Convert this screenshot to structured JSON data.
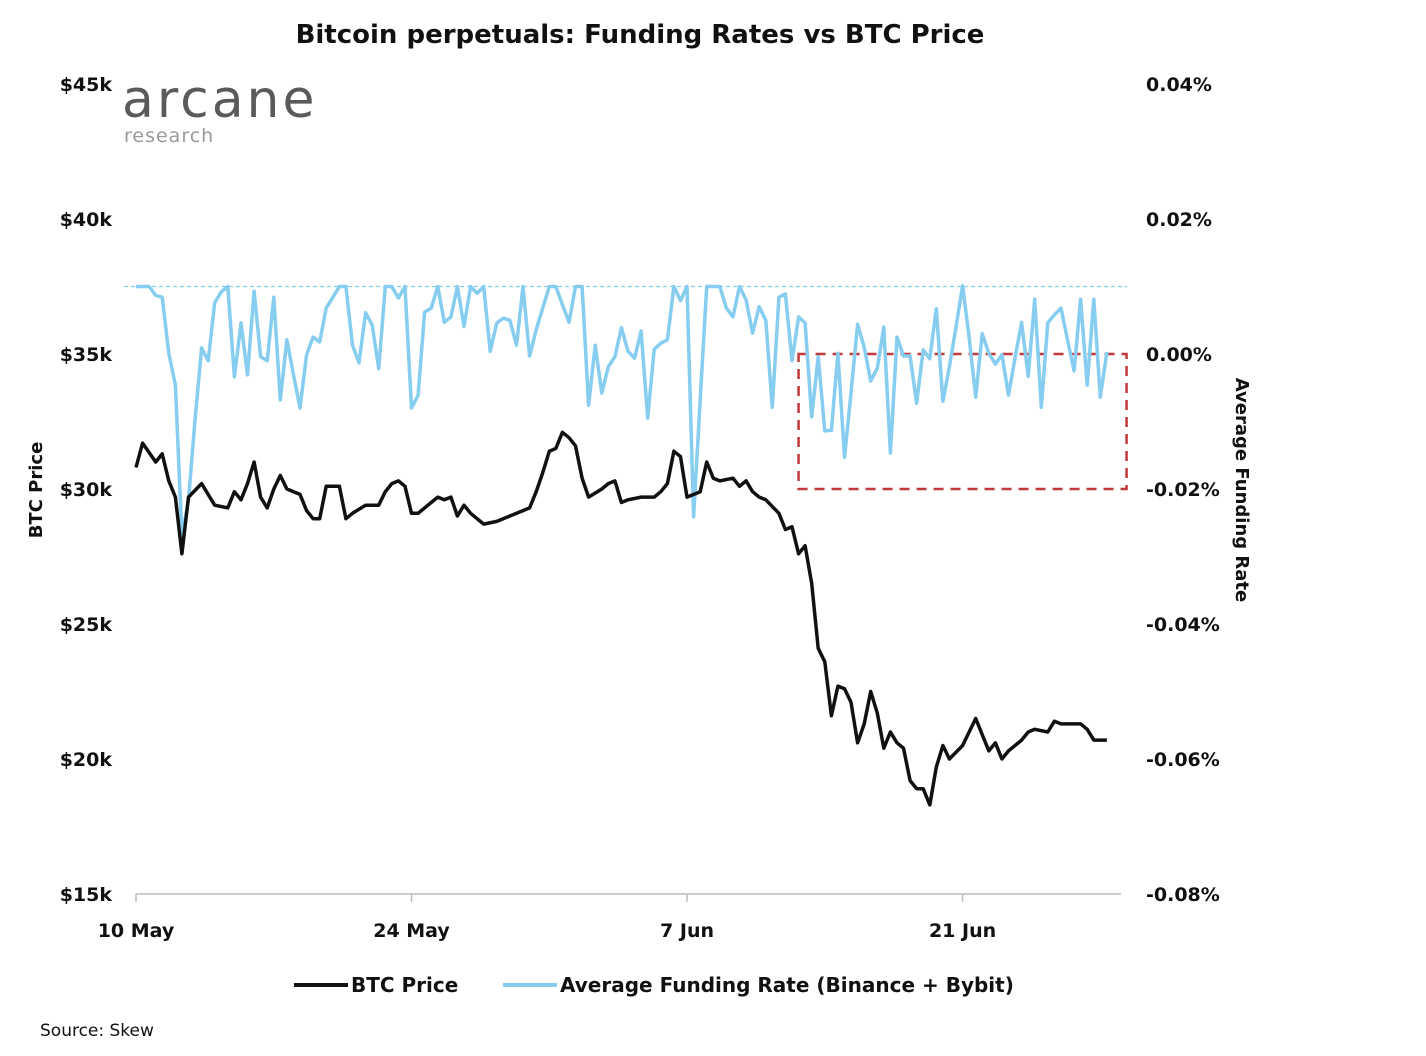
{
  "chart_data": {
    "type": "line",
    "title": "Bitcoin perpetuals: Funding Rates vs BTC Price",
    "ylabel_left": "BTC Price",
    "ylabel_right": "Average Funding Rate",
    "x_ticks": [
      "10 May",
      "24 May",
      "7 Jun",
      "21 Jun"
    ],
    "y_left_ticks": [
      "$15k",
      "$20k",
      "$25k",
      "$30k",
      "$35k",
      "$40k",
      "$45k"
    ],
    "y_left_range": [
      15000,
      45000
    ],
    "y_right_ticks": [
      "-0.08%",
      "-0.06%",
      "-0.04%",
      "-0.02%",
      "0.00%",
      "0.02%",
      "0.04%"
    ],
    "y_right_range": [
      -0.08,
      0.04
    ],
    "grid": false,
    "legend_position": "bottom",
    "colors": {
      "btc_price": "#111111",
      "funding": "#86CDF0",
      "highlight_box": "#C0393B",
      "cap_line": "#86CDF0"
    },
    "reference_line": {
      "axis": "right",
      "value": 0.01,
      "style": "dashed"
    },
    "highlight_box": {
      "x_range": [
        "Jun 12 16:00",
        "Jun 29 08:00"
      ],
      "y_right_range": [
        -0.02,
        0.0
      ],
      "style": "dashed"
    },
    "series": [
      {
        "name": "BTC Price",
        "axis": "left",
        "x": [
          "May 10 00:00",
          "May 10 08:00",
          "May 11 00:00",
          "May 11 08:00",
          "May 11 16:00",
          "May 12 00:00",
          "May 12 08:00",
          "May 12 16:00",
          "May 13 08:00",
          "May 14 00:00",
          "May 14 16:00",
          "May 15 00:00",
          "May 15 08:00",
          "May 15 16:00",
          "May 16 00:00",
          "May 16 08:00",
          "May 16 16:00",
          "May 17 00:00",
          "May 17 08:00",
          "May 17 16:00",
          "May 18 08:00",
          "May 18 16:00",
          "May 19 00:00",
          "May 19 08:00",
          "May 19 16:00",
          "May 20 08:00",
          "May 20 16:00",
          "May 21 00:00",
          "May 21 16:00",
          "May 22 08:00",
          "May 22 16:00",
          "May 23 00:00",
          "May 23 08:00",
          "May 23 16:00",
          "May 24 00:00",
          "May 24 08:00",
          "May 25 00:00",
          "May 25 08:00",
          "May 25 16:00",
          "May 26 00:00",
          "May 26 08:00",
          "May 26 16:00",
          "May 27 00:00",
          "May 27 16:00",
          "May 28 08:00",
          "May 29 00:00",
          "May 29 16:00",
          "May 30 00:00",
          "May 30 08:00",
          "May 30 16:00",
          "May 31 00:00",
          "May 31 08:00",
          "May 31 16:00",
          "Jun 1 00:00",
          "Jun 1 08:00",
          "Jun 1 16:00",
          "Jun 2 00:00",
          "Jun 2 16:00",
          "Jun 3 00:00",
          "Jun 3 08:00",
          "Jun 3 16:00",
          "Jun 4 00:00",
          "Jun 4 16:00",
          "Jun 5 08:00",
          "Jun 5 16:00",
          "Jun 6 00:00",
          "Jun 6 08:00",
          "Jun 6 16:00",
          "Jun 7 00:00",
          "Jun 7 16:00",
          "Jun 8 00:00",
          "Jun 8 08:00",
          "Jun 8 16:00",
          "Jun 9 08:00",
          "Jun 9 16:00",
          "Jun 10 00:00",
          "Jun 10 08:00",
          "Jun 10 16:00",
          "Jun 11 00:00",
          "Jun 11 16:00",
          "Jun 12 00:00",
          "Jun 12 08:00",
          "Jun 12 16:00",
          "Jun 13 00:00",
          "Jun 13 08:00",
          "Jun 13 16:00",
          "Jun 14 00:00",
          "Jun 14 08:00",
          "Jun 14 16:00",
          "Jun 15 00:00",
          "Jun 15 08:00",
          "Jun 15 16:00",
          "Jun 16 00:00",
          "Jun 16 08:00",
          "Jun 16 16:00",
          "Jun 17 00:00",
          "Jun 17 08:00",
          "Jun 17 16:00",
          "Jun 18 00:00",
          "Jun 18 08:00",
          "Jun 18 16:00",
          "Jun 19 00:00",
          "Jun 19 08:00",
          "Jun 19 16:00",
          "Jun 20 00:00",
          "Jun 20 08:00",
          "Jun 21 00:00",
          "Jun 21 16:00",
          "Jun 22 08:00",
          "Jun 22 16:00",
          "Jun 23 00:00",
          "Jun 23 08:00",
          "Jun 24 00:00",
          "Jun 24 08:00",
          "Jun 24 16:00",
          "Jun 25 08:00",
          "Jun 25 16:00",
          "Jun 26 00:00",
          "Jun 27 00:00",
          "Jun 27 08:00",
          "Jun 27 16:00",
          "Jun 28 00:00",
          "Jun 28 08:00"
        ],
        "y": [
          30800,
          31700,
          31000,
          31300,
          30300,
          29700,
          27600,
          29700,
          30200,
          29400,
          29300,
          29900,
          29600,
          30200,
          31000,
          29700,
          29300,
          30000,
          30500,
          30000,
          29800,
          29200,
          28900,
          28900,
          30100,
          30100,
          28900,
          29100,
          29400,
          29400,
          29900,
          30200,
          30300,
          30100,
          29100,
          29100,
          29500,
          29700,
          29600,
          29700,
          29000,
          29400,
          29100,
          28700,
          28800,
          29000,
          29200,
          29300,
          29900,
          30600,
          31400,
          31500,
          32100,
          31900,
          31600,
          30400,
          29700,
          30000,
          30200,
          30300,
          29500,
          29600,
          29700,
          29700,
          29900,
          30200,
          31400,
          31200,
          29700,
          29900,
          31000,
          30400,
          30300,
          30400,
          30100,
          30300,
          29900,
          29700,
          29600,
          29100,
          28500,
          28600,
          27600,
          27900,
          26500,
          24100,
          23600,
          21600,
          22700,
          22600,
          22100,
          20600,
          21300,
          22500,
          21700,
          20400,
          21000,
          20600,
          20400,
          19200,
          18900,
          18900,
          18300,
          19700,
          20500,
          20000,
          20500,
          21500,
          20300,
          20600,
          20000,
          20300,
          20700,
          21000,
          21100,
          21000,
          21400,
          21300,
          21300,
          21100,
          20700,
          20700,
          20700
        ]
      },
      {
        "name": "Average Funding Rate (Binance + Bybit)",
        "axis": "right",
        "unit": "%",
        "interval": "8h",
        "x": [
          "May 10 00:00",
          "May 10 08:00",
          "May 10 16:00",
          "May 11 00:00",
          "May 11 08:00",
          "May 11 16:00",
          "May 12 00:00",
          "May 12 08:00",
          "May 12 16:00",
          "May 13 00:00",
          "May 13 08:00",
          "May 13 16:00",
          "May 14 00:00",
          "May 14 08:00",
          "May 14 16:00",
          "May 15 00:00",
          "May 15 08:00",
          "May 15 16:00",
          "May 16 00:00",
          "May 16 08:00",
          "May 16 16:00",
          "May 17 00:00",
          "May 17 08:00",
          "May 17 16:00",
          "May 18 00:00",
          "May 18 08:00",
          "May 18 16:00",
          "May 19 00:00",
          "May 19 08:00",
          "May 19 16:00",
          "May 20 00:00",
          "May 20 08:00",
          "May 20 16:00",
          "May 21 00:00",
          "May 21 08:00",
          "May 21 16:00",
          "May 22 00:00",
          "May 22 08:00",
          "May 22 16:00",
          "May 23 00:00",
          "May 23 08:00",
          "May 23 16:00",
          "May 24 00:00",
          "May 24 08:00",
          "May 24 16:00",
          "May 25 00:00",
          "May 25 08:00",
          "May 25 16:00",
          "May 26 00:00",
          "May 26 08:00",
          "May 26 16:00",
          "May 27 00:00",
          "May 27 08:00",
          "May 27 16:00",
          "May 28 00:00",
          "May 28 08:00",
          "May 28 16:00",
          "May 29 00:00",
          "May 29 08:00",
          "May 29 16:00",
          "May 30 00:00",
          "May 30 08:00",
          "May 30 16:00",
          "May 31 00:00",
          "May 31 08:00",
          "May 31 16:00",
          "Jun 1 00:00",
          "Jun 1 08:00",
          "Jun 1 16:00",
          "Jun 2 00:00",
          "Jun 2 08:00",
          "Jun 2 16:00",
          "Jun 3 00:00",
          "Jun 3 08:00",
          "Jun 3 16:00",
          "Jun 4 00:00",
          "Jun 4 08:00",
          "Jun 4 16:00",
          "Jun 5 00:00",
          "Jun 5 08:00",
          "Jun 5 16:00",
          "Jun 6 00:00",
          "Jun 6 08:00",
          "Jun 6 16:00",
          "Jun 7 00:00",
          "Jun 7 08:00",
          "Jun 7 16:00",
          "Jun 8 00:00",
          "Jun 8 08:00",
          "Jun 8 16:00",
          "Jun 9 00:00",
          "Jun 9 08:00",
          "Jun 9 16:00",
          "Jun 10 00:00",
          "Jun 10 08:00",
          "Jun 10 16:00",
          "Jun 11 00:00",
          "Jun 11 08:00",
          "Jun 11 16:00",
          "Jun 12 00:00",
          "Jun 12 08:00",
          "Jun 12 16:00",
          "Jun 13 00:00",
          "Jun 13 08:00",
          "Jun 13 16:00",
          "Jun 14 00:00",
          "Jun 14 08:00",
          "Jun 14 16:00",
          "Jun 15 00:00",
          "Jun 15 08:00",
          "Jun 15 16:00",
          "Jun 16 00:00",
          "Jun 16 08:00",
          "Jun 16 16:00",
          "Jun 17 00:00",
          "Jun 17 08:00",
          "Jun 17 16:00",
          "Jun 18 00:00",
          "Jun 18 08:00",
          "Jun 18 16:00",
          "Jun 19 00:00",
          "Jun 19 08:00",
          "Jun 19 16:00",
          "Jun 20 00:00",
          "Jun 20 08:00",
          "Jun 20 16:00",
          "Jun 21 00:00",
          "Jun 21 08:00",
          "Jun 21 16:00",
          "Jun 22 00:00",
          "Jun 22 08:00",
          "Jun 22 16:00",
          "Jun 23 00:00",
          "Jun 23 08:00",
          "Jun 23 16:00",
          "Jun 24 00:00",
          "Jun 24 08:00",
          "Jun 24 16:00",
          "Jun 25 00:00",
          "Jun 25 08:00",
          "Jun 25 16:00",
          "Jun 26 00:00",
          "Jun 26 08:00",
          "Jun 26 16:00",
          "Jun 27 00:00",
          "Jun 27 08:00",
          "Jun 27 16:00",
          "Jun 28 00:00",
          "Jun 28 08:00"
        ],
        "y": [
          0.01,
          0.01,
          0.01,
          0.0087,
          0.0084,
          0.0001,
          -0.0046,
          -0.0271,
          -0.0216,
          -0.0098,
          0.0009,
          -0.001,
          0.0076,
          0.0092,
          0.01,
          -0.0034,
          0.0046,
          -0.0031,
          0.0093,
          -0.0004,
          -0.001,
          0.0084,
          -0.0068,
          0.0021,
          -0.003,
          -0.008,
          -0.0001,
          0.0025,
          0.0018,
          0.0068,
          0.0084,
          0.01,
          0.01,
          0.0013,
          -0.0013,
          0.0061,
          0.0043,
          -0.0022,
          0.01,
          0.01,
          0.0083,
          0.01,
          -0.008,
          -0.0061,
          0.0062,
          0.0068,
          0.01,
          0.0047,
          0.0055,
          0.01,
          0.0041,
          0.01,
          0.009,
          0.01,
          0.0004,
          0.0046,
          0.0053,
          0.005,
          0.0013,
          0.01,
          -0.0003,
          0.0036,
          0.0068,
          0.01,
          0.01,
          0.0073,
          0.0047,
          0.01,
          0.01,
          -0.0076,
          0.0013,
          -0.0058,
          -0.0019,
          -0.0004,
          0.0039,
          0.0004,
          -0.0006,
          0.0034,
          -0.0095,
          0.0007,
          0.0016,
          0.0021,
          0.01,
          0.0079,
          0.01,
          -0.0241,
          -0.0068,
          0.01,
          0.01,
          0.01,
          0.0068,
          0.0055,
          0.01,
          0.008,
          0.0031,
          0.007,
          0.005,
          -0.0079,
          0.0084,
          0.0089,
          -0.001,
          0.0055,
          0.0046,
          -0.0093,
          -0.0004,
          -0.0114,
          -0.0113,
          0.0001,
          -0.0153,
          -0.0058,
          0.0044,
          0.001,
          -0.004,
          -0.0021,
          0.004,
          -0.0147,
          0.0025,
          -0.0003,
          -0.0003,
          -0.0073,
          0.0006,
          -0.0007,
          0.0067,
          -0.007,
          -0.0019,
          0.004,
          0.0101,
          0.0025,
          -0.0064,
          0.003,
          0.0001,
          -0.0015,
          -0.0001,
          -0.0061,
          -0.0006,
          0.0047,
          -0.0033,
          0.0081,
          -0.0079,
          0.0046,
          0.0058,
          0.0068,
          0.0021,
          -0.0025,
          0.0081,
          -0.0046,
          0.0081,
          -0.0064,
          0.0003
        ]
      }
    ]
  },
  "logo": {
    "name": "arcane",
    "sub": "research"
  },
  "source": "Source: Skew"
}
